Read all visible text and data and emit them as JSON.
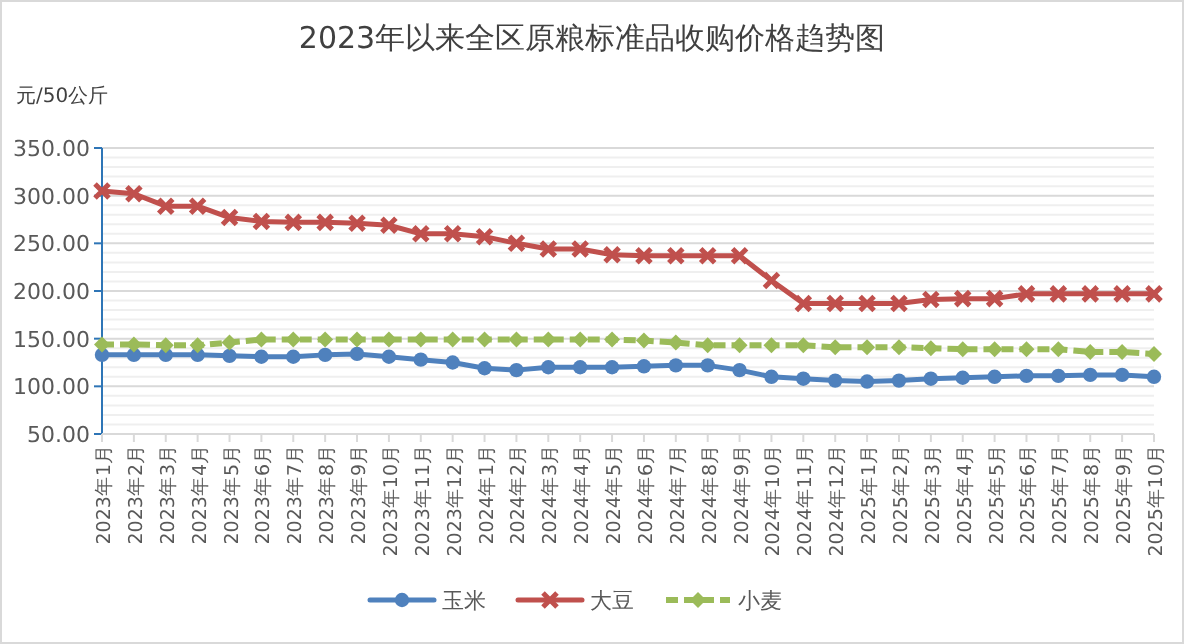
{
  "chart_data": {
    "type": "line",
    "title": "2023年以来全区原粮标准品收购价格趋势图",
    "ylabel": "元/50公斤",
    "categories": [
      "2023年1月",
      "2023年2月",
      "2023年3月",
      "2023年4月",
      "2023年5月",
      "2023年6月",
      "2023年7月",
      "2023年8月",
      "2023年9月",
      "2023年10月",
      "2023年11月",
      "2023年12月",
      "2024年1月",
      "2024年2月",
      "2024年3月",
      "2024年4月",
      "2024年5月",
      "2024年6月",
      "2024年7月",
      "2024年8月",
      "2024年9月",
      "2024年10月",
      "2024年11月",
      "2024年12月",
      "2025年1月",
      "2025年2月",
      "2025年3月",
      "2025年4月",
      "2025年5月",
      "2025年6月",
      "2025年7月",
      "2025年8月",
      "2025年9月",
      "2025年10月"
    ],
    "series": [
      {
        "name": "玉米",
        "color": "#4f81bd",
        "marker": "circle",
        "line_style": "solid",
        "values": [
          133,
          133,
          133,
          133,
          132,
          131,
          131,
          133,
          134,
          131,
          128,
          125,
          119,
          117,
          120,
          120,
          120,
          121,
          122,
          122,
          117,
          110,
          108,
          106,
          105,
          106,
          108,
          109,
          110,
          111,
          111,
          112,
          112,
          110
        ]
      },
      {
        "name": "大豆",
        "color": "#c0504d",
        "marker": "cross",
        "line_style": "solid",
        "values": [
          305,
          302,
          289,
          289,
          277,
          273,
          272,
          272,
          271,
          269,
          260,
          260,
          257,
          250,
          244,
          244,
          238,
          237,
          237,
          237,
          237,
          211,
          187,
          187,
          187,
          187,
          191,
          192,
          192,
          197,
          197,
          197,
          197,
          197
        ]
      },
      {
        "name": "小麦",
        "color": "#9bbb59",
        "marker": "diamond",
        "line_style": "dashed",
        "values": [
          144,
          144,
          143,
          143,
          146,
          149,
          149,
          149,
          149,
          149,
          149,
          149,
          149,
          149,
          149,
          149,
          149,
          148,
          146,
          143,
          143,
          143,
          143,
          141,
          141,
          141,
          140,
          139,
          139,
          139,
          139,
          136,
          136,
          134
        ]
      }
    ],
    "ylim": [
      50,
      350
    ],
    "yticks": [
      {
        "value": 50,
        "label": "50.00"
      },
      {
        "value": 100,
        "label": "100.00"
      },
      {
        "value": 150,
        "label": "150.00"
      },
      {
        "value": 200,
        "label": "200.00"
      },
      {
        "value": 250,
        "label": "250.00"
      },
      {
        "value": 300,
        "label": "300.00"
      },
      {
        "value": 350,
        "label": "350.00"
      }
    ],
    "grid": "y",
    "legend": "bottom"
  }
}
